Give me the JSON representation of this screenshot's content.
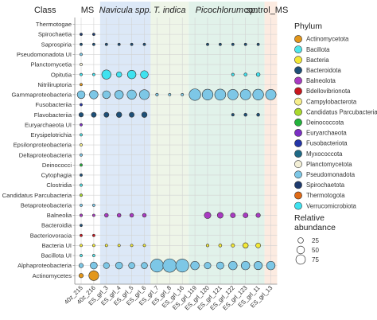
{
  "chart_data": {
    "type": "scatter",
    "row_axis_title": "Class",
    "groups": [
      {
        "label": "MS",
        "italic": false,
        "bg": "#ffffff"
      },
      {
        "label": "Navicula spp.",
        "italic": true,
        "bg": "#dce8f7"
      },
      {
        "label": "T. indica",
        "italic": true,
        "bg": "#eef5e8"
      },
      {
        "label": "Picochlorum sp.",
        "italic": true,
        "bg": "#e1f2ea"
      },
      {
        "label": "control_MS",
        "italic": false,
        "bg": "#fcebe1"
      }
    ],
    "samples": [
      "40z_215",
      "40z_216",
      "ES_grl_3",
      "ES_grl_4",
      "ES_grl_5",
      "ES_grl_6",
      "ES_grl_7",
      "ES_grl_8",
      "ES_grl_16",
      "ES_grl_119",
      "ES_grl_120",
      "ES_grl_121",
      "ES_grl_122",
      "ES_grl_123",
      "ES_grl_11",
      "ES_grl_13"
    ],
    "sample_groups": [
      0,
      0,
      1,
      1,
      1,
      1,
      2,
      2,
      2,
      3,
      3,
      3,
      3,
      3,
      3,
      4
    ],
    "rows": [
      {
        "class": "Thermotogae",
        "phylum": "Thermotogota"
      },
      {
        "class": "Spirochaetia",
        "phylum": "Spirochaetota"
      },
      {
        "class": "Saprospiria",
        "phylum": "Bacteroidota"
      },
      {
        "class": "Pseudomonadota UI",
        "phylum": "Pseudomonadota"
      },
      {
        "class": "Planctomycetia",
        "phylum": "Planctomycetota"
      },
      {
        "class": "Opitutia",
        "phylum": "Verrucomicrobiota"
      },
      {
        "class": "Nitriliruptoria",
        "phylum": "Actinomycetota"
      },
      {
        "class": "Gammaproteobacteria",
        "phylum": "Pseudomonadota"
      },
      {
        "class": "Fusobacteriia",
        "phylum": "Fusobacteriota"
      },
      {
        "class": "Flavobacteriia",
        "phylum": "Bacteroidota"
      },
      {
        "class": "Euryarchaeota UI",
        "phylum": "Euryarchaeota"
      },
      {
        "class": "Erysipelotrichia",
        "phylum": "Bacillota"
      },
      {
        "class": "Epsilonproteobacteria",
        "phylum": "Campylobacterota"
      },
      {
        "class": "Deltaproteobacteria",
        "phylum": "Pseudomonadota"
      },
      {
        "class": "Deinococci",
        "phylum": "Deinococcota"
      },
      {
        "class": "Cytophagia",
        "phylum": "Bacteroidota"
      },
      {
        "class": "Clostridia",
        "phylum": "Bacillota"
      },
      {
        "class": "Candidatus Parcubacteria",
        "phylum": "Candidatus Parcubacteria"
      },
      {
        "class": "Betaproteobacteria",
        "phylum": "Pseudomonadota"
      },
      {
        "class": "Balneolia",
        "phylum": "Balneolota"
      },
      {
        "class": "Bacteroidia",
        "phylum": "Bacteroidota"
      },
      {
        "class": "Bacteriovoracia",
        "phylum": "Bdellovibrionota"
      },
      {
        "class": "Bacteria UI",
        "phylum": "Bacteria"
      },
      {
        "class": "Bacillota UI",
        "phylum": "Bacillota"
      },
      {
        "class": "Alphaproteobacteria",
        "phylum": "Pseudomonadota"
      },
      {
        "class": "Actinomycetes",
        "phylum": "Actinomycetota"
      }
    ],
    "abundance": [
      [
        0,
        0,
        0,
        0,
        0,
        0,
        0,
        0,
        0,
        0,
        0,
        0,
        0,
        0,
        0,
        0
      ],
      [
        1,
        1,
        0,
        0,
        0,
        0,
        0,
        0,
        0,
        0,
        0,
        0,
        0,
        0,
        0,
        0
      ],
      [
        1,
        1,
        2,
        2,
        2,
        2,
        0,
        0,
        0,
        0,
        2,
        2,
        2,
        2,
        2,
        0
      ],
      [
        1,
        0,
        0,
        0,
        0,
        0,
        0,
        0,
        0,
        0,
        0,
        0,
        0,
        0,
        0,
        0
      ],
      [
        1,
        0,
        0,
        0,
        0,
        0,
        0,
        0,
        0,
        0,
        0,
        0,
        0,
        0,
        0,
        0
      ],
      [
        2,
        1,
        35,
        12,
        30,
        25,
        0,
        0,
        0,
        0,
        0,
        0,
        3,
        4,
        6,
        0
      ],
      [
        1,
        0,
        0,
        0,
        0,
        0,
        0,
        0,
        0,
        0,
        0,
        0,
        0,
        0,
        0,
        0
      ],
      [
        25,
        30,
        25,
        30,
        35,
        40,
        3,
        2,
        2,
        55,
        48,
        50,
        45,
        45,
        48,
        45
      ],
      [
        1,
        0,
        0,
        0,
        0,
        0,
        0,
        0,
        0,
        0,
        0,
        0,
        0,
        0,
        0,
        0
      ],
      [
        8,
        10,
        10,
        12,
        10,
        12,
        0,
        0,
        0,
        0,
        0,
        0,
        3,
        4,
        4,
        0
      ],
      [
        2,
        0,
        0,
        0,
        0,
        0,
        0,
        0,
        0,
        0,
        0,
        0,
        0,
        0,
        0,
        0
      ],
      [
        1,
        0,
        0,
        0,
        0,
        0,
        0,
        0,
        0,
        0,
        0,
        0,
        0,
        0,
        0,
        0
      ],
      [
        1,
        0,
        0,
        0,
        0,
        0,
        0,
        0,
        0,
        0,
        0,
        0,
        0,
        0,
        0,
        0
      ],
      [
        1,
        0,
        0,
        0,
        0,
        0,
        0,
        0,
        0,
        0,
        0,
        0,
        0,
        0,
        0,
        0
      ],
      [
        1,
        0,
        0,
        0,
        0,
        0,
        0,
        0,
        0,
        0,
        0,
        0,
        0,
        0,
        0,
        0
      ],
      [
        1,
        0,
        0,
        0,
        0,
        0,
        0,
        0,
        0,
        0,
        0,
        0,
        0,
        0,
        0,
        0
      ],
      [
        1,
        0,
        0,
        0,
        0,
        0,
        0,
        0,
        0,
        0,
        0,
        0,
        0,
        0,
        0,
        0
      ],
      [
        1,
        0,
        0,
        0,
        0,
        0,
        0,
        0,
        0,
        0,
        0,
        0,
        0,
        0,
        0,
        0
      ],
      [
        1,
        2,
        0,
        0,
        0,
        0,
        0,
        0,
        0,
        0,
        0,
        0,
        0,
        0,
        0,
        0
      ],
      [
        3,
        2,
        6,
        6,
        6,
        6,
        0,
        0,
        0,
        0,
        18,
        14,
        10,
        10,
        8,
        0
      ],
      [
        1,
        0,
        0,
        0,
        0,
        0,
        0,
        0,
        0,
        0,
        0,
        0,
        0,
        0,
        0,
        0
      ],
      [
        1,
        1,
        0,
        0,
        0,
        0,
        0,
        0,
        0,
        0,
        0,
        0,
        0,
        0,
        0,
        0
      ],
      [
        2,
        2,
        1,
        1,
        2,
        2,
        0,
        0,
        0,
        0,
        3,
        4,
        5,
        12,
        10,
        0
      ],
      [
        1,
        1,
        0,
        0,
        0,
        0,
        0,
        0,
        0,
        0,
        0,
        0,
        0,
        0,
        0,
        0
      ],
      [
        8,
        20,
        15,
        20,
        16,
        16,
        70,
        75,
        70,
        30,
        18,
        22,
        30,
        30,
        28,
        30
      ],
      [
        8,
        40,
        0,
        0,
        0,
        0,
        0,
        0,
        0,
        0,
        0,
        0,
        0,
        0,
        0,
        0
      ]
    ],
    "legend_title": "Phylum",
    "phyla": [
      {
        "name": "Actinomycetota",
        "color": "#e3971c"
      },
      {
        "name": "Bacillota",
        "color": "#4fe6ea"
      },
      {
        "name": "Bacteria",
        "color": "#f2e836"
      },
      {
        "name": "Bacteroidota",
        "color": "#1d4f78"
      },
      {
        "name": "Balneolota",
        "color": "#a83ac2"
      },
      {
        "name": "Bdellovibrionota",
        "color": "#c9161d"
      },
      {
        "name": "Campylobacterota",
        "color": "#f6ee8a"
      },
      {
        "name": "Candidatus Parcubacteria",
        "color": "#a9d92c"
      },
      {
        "name": "Deinococcota",
        "color": "#23b23c"
      },
      {
        "name": "Euryarchaeota",
        "color": "#7b2fc4"
      },
      {
        "name": "Fusobacteriota",
        "color": "#2435a8"
      },
      {
        "name": "Myxococcota",
        "color": "#1f6a86"
      },
      {
        "name": "Planctomycetota",
        "color": "#f3efd6"
      },
      {
        "name": "Pseudomonadota",
        "color": "#7dc7e6"
      },
      {
        "name": "Spirochaetota",
        "color": "#1e3b6e"
      },
      {
        "name": "Thermotogota",
        "color": "#e06a16"
      },
      {
        "name": "Verrucomicrobiota",
        "color": "#3fe2f0"
      }
    ],
    "size_legend_title": "Relative abundance",
    "size_legend": [
      25,
      50,
      75
    ],
    "max_abundance": 75
  }
}
